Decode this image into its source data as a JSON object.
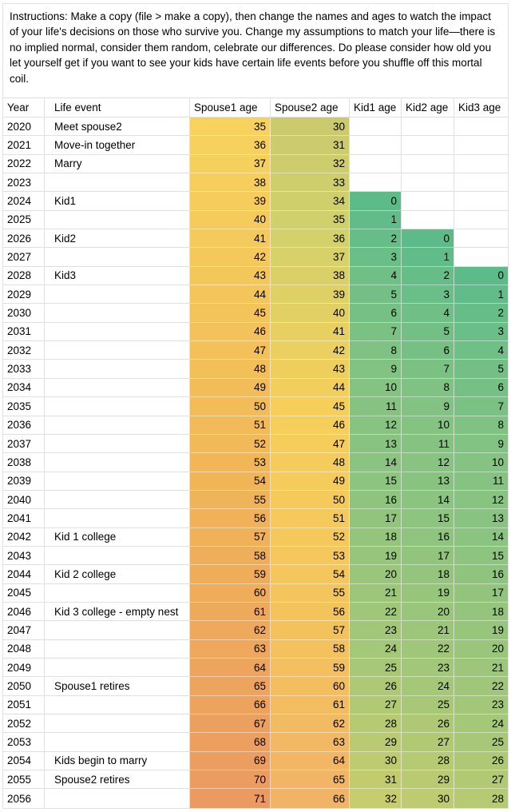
{
  "instructions": "Instructions: Make a copy (file > make a copy), then change the names and ages to watch the impact of your life's decisions on those who survive you. Change my assumptions to match your life—there is no implied normal, consider them random, celebrate our differences. Do please consider how old you let yourself get if you want to see your kids have certain life events before you shuffle off this mortal coil.",
  "colors": {
    "gridline": "#e0e0e0",
    "scales": {
      "spouse1": [
        [
          35,
          "#F7D35E"
        ],
        [
          53,
          "#F1B757"
        ],
        [
          71,
          "#EB9A61"
        ]
      ],
      "spouse2": [
        [
          30,
          "#CBCB6E"
        ],
        [
          35,
          "#D0D06C"
        ],
        [
          45,
          "#F6CF5B"
        ],
        [
          56,
          "#F4C45C"
        ],
        [
          66,
          "#F1B366"
        ]
      ],
      "kids": [
        [
          0,
          "#5DBB8A"
        ],
        [
          8,
          "#80C283"
        ],
        [
          16,
          "#8FC47F"
        ],
        [
          24,
          "#A5C778"
        ],
        [
          32,
          "#C7CC6E"
        ]
      ]
    }
  },
  "table": {
    "columns": [
      {
        "key": "year",
        "label": "Year",
        "align": "left"
      },
      {
        "key": "event",
        "label": "Life event",
        "align": "left"
      },
      {
        "key": "spouse1",
        "label": "Spouse1 age",
        "align": "right",
        "scale": "spouse1"
      },
      {
        "key": "spouse2",
        "label": "Spouse2 age",
        "align": "right",
        "scale": "spouse2"
      },
      {
        "key": "kid1",
        "label": "Kid1 age",
        "align": "right",
        "scale": "kids"
      },
      {
        "key": "kid2",
        "label": "Kid2 age",
        "align": "right",
        "scale": "kids"
      },
      {
        "key": "kid3",
        "label": "Kid3 age",
        "align": "right",
        "scale": "kids"
      }
    ],
    "rows": [
      [
        2020,
        "Meet spouse2",
        35,
        30,
        null,
        null,
        null
      ],
      [
        2021,
        "Move-in together",
        36,
        31,
        null,
        null,
        null
      ],
      [
        2022,
        "Marry",
        37,
        32,
        null,
        null,
        null
      ],
      [
        2023,
        "",
        38,
        33,
        null,
        null,
        null
      ],
      [
        2024,
        "Kid1",
        39,
        34,
        0,
        null,
        null
      ],
      [
        2025,
        "",
        40,
        35,
        1,
        null,
        null
      ],
      [
        2026,
        "Kid2",
        41,
        36,
        2,
        0,
        null
      ],
      [
        2027,
        "",
        42,
        37,
        3,
        1,
        null
      ],
      [
        2028,
        "Kid3",
        43,
        38,
        4,
        2,
        0
      ],
      [
        2029,
        "",
        44,
        39,
        5,
        3,
        1
      ],
      [
        2030,
        "",
        45,
        40,
        6,
        4,
        2
      ],
      [
        2031,
        "",
        46,
        41,
        7,
        5,
        3
      ],
      [
        2032,
        "",
        47,
        42,
        8,
        6,
        4
      ],
      [
        2033,
        "",
        48,
        43,
        9,
        7,
        5
      ],
      [
        2034,
        "",
        49,
        44,
        10,
        8,
        6
      ],
      [
        2035,
        "",
        50,
        45,
        11,
        9,
        7
      ],
      [
        2036,
        "",
        51,
        46,
        12,
        10,
        8
      ],
      [
        2037,
        "",
        52,
        47,
        13,
        11,
        9
      ],
      [
        2038,
        "",
        53,
        48,
        14,
        12,
        10
      ],
      [
        2039,
        "",
        54,
        49,
        15,
        13,
        11
      ],
      [
        2040,
        "",
        55,
        50,
        16,
        14,
        12
      ],
      [
        2041,
        "",
        56,
        51,
        17,
        15,
        13
      ],
      [
        2042,
        "Kid 1 college",
        57,
        52,
        18,
        16,
        14
      ],
      [
        2043,
        "",
        58,
        53,
        19,
        17,
        15
      ],
      [
        2044,
        "Kid 2 college",
        59,
        54,
        20,
        18,
        16
      ],
      [
        2045,
        "",
        60,
        55,
        21,
        19,
        17
      ],
      [
        2046,
        "Kid 3 college - empty nest",
        61,
        56,
        22,
        20,
        18
      ],
      [
        2047,
        "",
        62,
        57,
        23,
        21,
        19
      ],
      [
        2048,
        "",
        63,
        58,
        24,
        22,
        20
      ],
      [
        2049,
        "",
        64,
        59,
        25,
        23,
        21
      ],
      [
        2050,
        "Spouse1 retires",
        65,
        60,
        26,
        24,
        22
      ],
      [
        2051,
        "",
        66,
        61,
        27,
        25,
        23
      ],
      [
        2052,
        "",
        67,
        62,
        28,
        26,
        24
      ],
      [
        2053,
        "",
        68,
        63,
        29,
        27,
        25
      ],
      [
        2054,
        "Kids begin to marry",
        69,
        64,
        30,
        28,
        26
      ],
      [
        2055,
        "Spouse2 retires",
        70,
        65,
        31,
        29,
        27
      ],
      [
        2056,
        "",
        71,
        66,
        32,
        30,
        28
      ]
    ]
  }
}
